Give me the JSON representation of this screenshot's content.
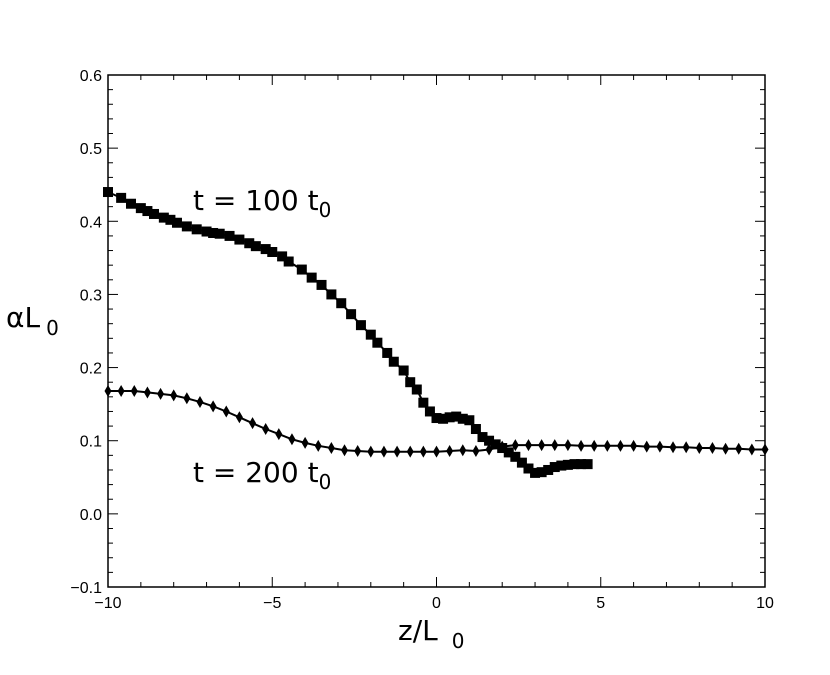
{
  "chart_data": {
    "type": "line",
    "title": "",
    "xlabel": {
      "main": "z/L",
      "sub": "0"
    },
    "ylabel": {
      "main": "αL",
      "sub": "0"
    },
    "xlim": [
      -10,
      10
    ],
    "ylim": [
      -0.1,
      0.6
    ],
    "x_ticks": [
      -10,
      -5,
      0,
      5,
      10
    ],
    "x_tick_labels": [
      "−10",
      "−5",
      "0",
      "5",
      "10"
    ],
    "y_ticks": [
      -0.1,
      0.0,
      0.1,
      0.2,
      0.3,
      0.4,
      0.5,
      0.6
    ],
    "y_tick_labels": [
      "−0.1",
      "0.0",
      "0.1",
      "0.2",
      "0.3",
      "0.4",
      "0.5",
      "0.6"
    ],
    "grid": false,
    "annotations": [
      {
        "main": "t = 100 t",
        "sub": "0",
        "series": "squares"
      },
      {
        "main": "t = 200 t",
        "sub": "0",
        "series": "diamonds"
      }
    ],
    "series": [
      {
        "marker": "square",
        "x": [
          -10.0,
          -9.6,
          -9.3,
          -9.0,
          -8.8,
          -8.6,
          -8.3,
          -8.1,
          -7.9,
          -7.6,
          -7.3,
          -7.0,
          -6.8,
          -6.6,
          -6.3,
          -6.0,
          -5.7,
          -5.5,
          -5.2,
          -5.0,
          -4.7,
          -4.5,
          -4.1,
          -3.8,
          -3.5,
          -3.2,
          -2.9,
          -2.6,
          -2.3,
          -2.0,
          -1.8,
          -1.5,
          -1.3,
          -1.0,
          -0.8,
          -0.6,
          -0.4,
          -0.2,
          0.0,
          0.2,
          0.4,
          0.6,
          0.8,
          1.0,
          1.2,
          1.4,
          1.6,
          1.8,
          2.0,
          2.2,
          2.4,
          2.6,
          2.8,
          3.0,
          3.2,
          3.4,
          3.6,
          3.8,
          4.0,
          4.2,
          4.4,
          4.6
        ],
        "y": [
          0.44,
          0.432,
          0.424,
          0.418,
          0.414,
          0.41,
          0.405,
          0.402,
          0.398,
          0.393,
          0.389,
          0.386,
          0.384,
          0.383,
          0.38,
          0.375,
          0.37,
          0.366,
          0.362,
          0.358,
          0.352,
          0.345,
          0.334,
          0.323,
          0.313,
          0.3,
          0.288,
          0.273,
          0.258,
          0.245,
          0.234,
          0.22,
          0.208,
          0.196,
          0.18,
          0.17,
          0.152,
          0.14,
          0.131,
          0.13,
          0.132,
          0.133,
          0.13,
          0.128,
          0.116,
          0.105,
          0.1,
          0.095,
          0.09,
          0.084,
          0.078,
          0.07,
          0.062,
          0.056,
          0.057,
          0.06,
          0.064,
          0.066,
          0.067,
          0.068,
          0.068,
          0.068
        ]
      },
      {
        "marker": "diamond",
        "x": [
          -10.0,
          -9.6,
          -9.2,
          -8.8,
          -8.4,
          -8.0,
          -7.6,
          -7.2,
          -6.8,
          -6.4,
          -6.0,
          -5.6,
          -5.2,
          -4.8,
          -4.4,
          -4.0,
          -3.6,
          -3.2,
          -2.8,
          -2.4,
          -2.0,
          -1.6,
          -1.2,
          -0.8,
          -0.4,
          0.0,
          0.4,
          0.8,
          1.2,
          1.6,
          2.0,
          2.4,
          2.8,
          3.2,
          3.6,
          4.0,
          4.4,
          4.8,
          5.2,
          5.6,
          6.0,
          6.4,
          6.8,
          7.2,
          7.6,
          8.0,
          8.4,
          8.8,
          9.2,
          9.6,
          10.0
        ],
        "y": [
          0.168,
          0.168,
          0.168,
          0.166,
          0.164,
          0.162,
          0.158,
          0.153,
          0.147,
          0.14,
          0.132,
          0.124,
          0.116,
          0.109,
          0.102,
          0.097,
          0.093,
          0.09,
          0.087,
          0.086,
          0.085,
          0.085,
          0.085,
          0.085,
          0.085,
          0.085,
          0.086,
          0.087,
          0.086,
          0.088,
          0.092,
          0.094,
          0.094,
          0.094,
          0.094,
          0.094,
          0.093,
          0.093,
          0.093,
          0.093,
          0.093,
          0.092,
          0.092,
          0.091,
          0.091,
          0.09,
          0.09,
          0.089,
          0.089,
          0.088,
          0.088
        ]
      }
    ],
    "colors": {
      "line": "#000000",
      "marker": "#000000",
      "background": "#ffffff"
    }
  }
}
